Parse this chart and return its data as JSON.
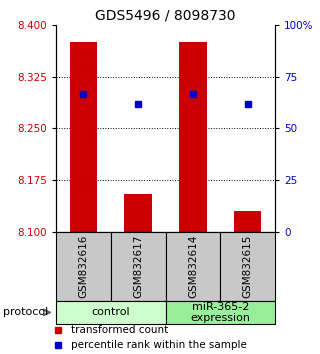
{
  "title": "GDS5496 / 8098730",
  "samples": [
    "GSM832616",
    "GSM832617",
    "GSM832614",
    "GSM832615"
  ],
  "groups": [
    {
      "name": "control",
      "color": "#ccffcc"
    },
    {
      "name": "miR-365-2\nexpression",
      "color": "#99ee99"
    }
  ],
  "bar_values": [
    8.375,
    8.155,
    8.375,
    8.13
  ],
  "bar_base": 8.1,
  "dot_values": [
    8.3,
    8.285,
    8.3,
    8.285
  ],
  "ylim": [
    8.1,
    8.4
  ],
  "yticks_left": [
    8.1,
    8.175,
    8.25,
    8.325,
    8.4
  ],
  "yticks_right": [
    0,
    25,
    50,
    75,
    100
  ],
  "bar_color": "#cc0000",
  "dot_color": "#0000cc",
  "bar_width": 0.5,
  "left_ylabel_color": "#cc0000",
  "right_ylabel_color": "#0000cc",
  "legend_bar_label": "transformed count",
  "legend_dot_label": "percentile rank within the sample",
  "protocol_label": "protocol",
  "group_label_fontsize": 8,
  "sample_label_fontsize": 7.5,
  "title_fontsize": 10
}
